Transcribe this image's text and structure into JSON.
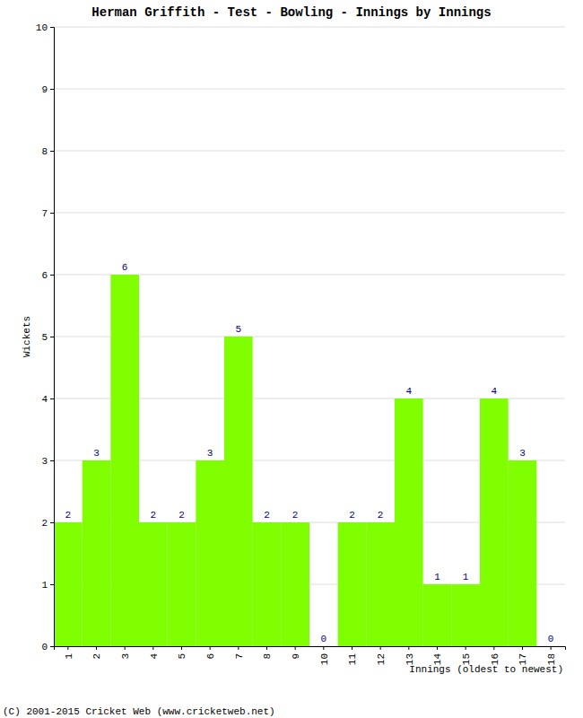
{
  "chart_data": {
    "type": "bar",
    "title": "Herman Griffith - Test - Bowling - Innings by Innings",
    "x_label": "Innings (oldest to newest)",
    "y_label": "Wickets",
    "annotations": [
      "(C) 2001-2015 Cricket Web (www.cricketweb.net)"
    ],
    "categories": [
      "1",
      "2",
      "3",
      "4",
      "5",
      "6",
      "7",
      "8",
      "9",
      "10",
      "11",
      "12",
      "13",
      "14",
      "15",
      "16",
      "17",
      "18"
    ],
    "values": [
      2,
      3,
      6,
      2,
      2,
      3,
      5,
      2,
      2,
      0,
      2,
      2,
      4,
      1,
      1,
      4,
      3,
      0
    ],
    "color": "#7fff00",
    "ylim": [
      0,
      10
    ],
    "yticks": [
      0,
      1,
      2,
      3,
      4,
      5,
      6,
      7,
      8,
      9,
      10
    ],
    "grid": true,
    "data_labels": true
  }
}
